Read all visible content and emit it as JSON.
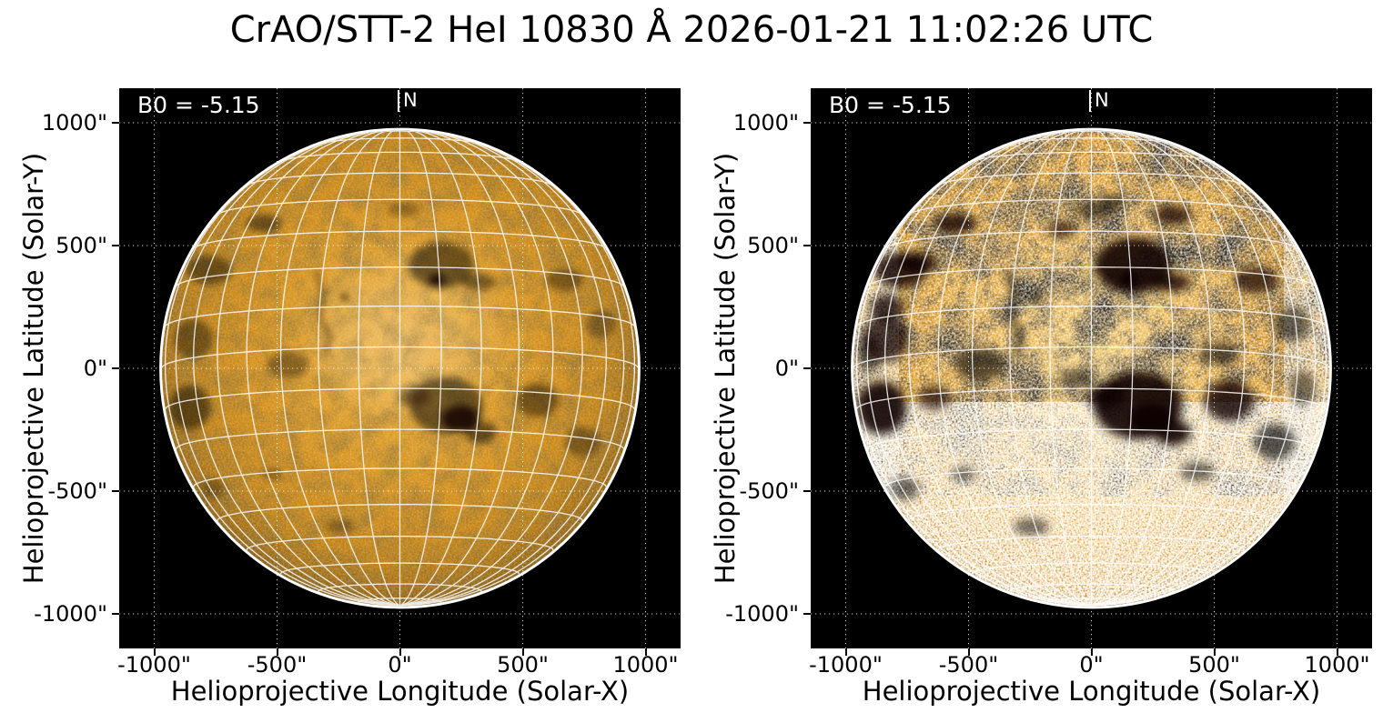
{
  "title": "CrAO/STT-2 HeI 10830 Å 2026-01-21 11:02:26 UTC",
  "axes": {
    "x_label": "Helioprojective Longitude (Solar-X)",
    "y_label": "Helioprojective Latitude (Solar-Y)",
    "x_ticks": [
      {
        "value": -1000,
        "label": "-1000\""
      },
      {
        "value": -500,
        "label": "-500\""
      },
      {
        "value": 0,
        "label": "0\""
      },
      {
        "value": 500,
        "label": "500\""
      },
      {
        "value": 1000,
        "label": "1000\""
      }
    ],
    "y_ticks": [
      {
        "value": 1000,
        "label": "1000\""
      },
      {
        "value": 500,
        "label": "500\""
      },
      {
        "value": 0,
        "label": "0\""
      },
      {
        "value": -500,
        "label": "-500\""
      },
      {
        "value": -1000,
        "label": "-1000\""
      }
    ]
  },
  "panels": [
    {
      "id": "left",
      "b0_label": "B0 = -5.15",
      "north_label": "N",
      "style": "standard"
    },
    {
      "id": "right",
      "b0_label": "B0 = -5.15",
      "north_label": "N",
      "style": "enhanced"
    }
  ],
  "colors": {
    "figure_background": "#ffffff",
    "plot_background": "#000000",
    "disk_mid_orange": "#d18a11",
    "disk_bright": "#f4c864",
    "grid_line": "#ffffff",
    "annotation_text": "#ffffff",
    "dark_feature": "#0a0602",
    "axis_text": "#000000"
  },
  "chart_data": {
    "type": "heatmap",
    "title": "CrAO/STT-2 HeI 10830 Å 2026-01-21 11:02:26 UTC",
    "xlabel": "Helioprojective Longitude (Solar-X)",
    "ylabel": "Helioprojective Latitude (Solar-Y)",
    "units": "arcsec",
    "xlim": [
      -1142,
      1142
    ],
    "ylim": [
      -1141,
      1141
    ],
    "x_ticks": [
      -1000,
      -500,
      0,
      500,
      1000
    ],
    "y_ticks": [
      -1000,
      -500,
      0,
      500,
      1000
    ],
    "grid": {
      "helioprojective_dotted_spacing_arcsec": 500,
      "heliographic_solid_spacing_deg": 10
    },
    "panels": [
      {
        "stretch": "standard",
        "appearance": "smooth orange chromospheric disk with dark He I absorption features"
      },
      {
        "stretch": "high-contrast",
        "appearance": "strong white speckle, bright south and limb regions, solid black absorption patches"
      }
    ],
    "solar_disk": {
      "radius_arcsec": 970,
      "b0_deg": -5.15,
      "p_angle_deg": 0,
      "heliographic_grid_spacing_deg": 10
    },
    "annotations": [
      {
        "text": "B0 = -5.15",
        "position": "top-left",
        "color": "#ffffff"
      },
      {
        "text": "N",
        "position": "top-center",
        "color": "#ffffff"
      }
    ],
    "dark_features_arcsec": [
      [
        -555,
        590,
        75,
        35,
        0.45
      ],
      [
        -775,
        400,
        90,
        60,
        0.45
      ],
      [
        -840,
        120,
        80,
        80,
        0.4
      ],
      [
        -855,
        -160,
        85,
        90,
        0.5
      ],
      [
        -455,
        15,
        85,
        55,
        0.35
      ],
      [
        -225,
        290,
        18,
        14,
        0.75
      ],
      [
        170,
        420,
        130,
        95,
        0.5
      ],
      [
        150,
        360,
        32,
        24,
        0.85
      ],
      [
        320,
        350,
        70,
        32,
        0.45
      ],
      [
        670,
        360,
        75,
        45,
        0.4
      ],
      [
        820,
        180,
        60,
        60,
        0.3
      ],
      [
        15,
        645,
        70,
        30,
        0.3
      ],
      [
        190,
        -150,
        150,
        115,
        0.5
      ],
      [
        245,
        -205,
        75,
        55,
        0.8
      ],
      [
        60,
        -115,
        65,
        42,
        0.4
      ],
      [
        330,
        -260,
        62,
        45,
        0.5
      ],
      [
        560,
        -130,
        85,
        70,
        0.45
      ],
      [
        745,
        -300,
        70,
        60,
        0.35
      ],
      [
        -520,
        -430,
        40,
        25,
        0.3
      ],
      [
        -760,
        -490,
        50,
        40,
        0.3
      ],
      [
        -245,
        -645,
        60,
        28,
        0.3
      ]
    ],
    "extra_dark_features_right_arcsec": [
      [
        -830,
        245,
        70,
        55,
        0.75
      ],
      [
        -705,
        430,
        80,
        45,
        0.8
      ],
      [
        -640,
        -120,
        70,
        50,
        0.65
      ],
      [
        -120,
        565,
        60,
        35,
        0.65
      ],
      [
        330,
        625,
        80,
        40,
        0.75
      ],
      [
        90,
        680,
        55,
        28,
        0.6
      ],
      [
        520,
        60,
        80,
        50,
        0.55
      ],
      [
        -60,
        -40,
        70,
        40,
        0.5
      ],
      [
        430,
        -420,
        70,
        40,
        0.55
      ],
      [
        860,
        -80,
        55,
        70,
        0.5
      ],
      [
        -905,
        60,
        45,
        80,
        0.6
      ]
    ],
    "filament_path_arcsec": [
      [
        -340,
        390
      ],
      [
        -310,
        300
      ],
      [
        -330,
        210
      ],
      [
        -285,
        130
      ],
      [
        -305,
        60
      ]
    ]
  }
}
